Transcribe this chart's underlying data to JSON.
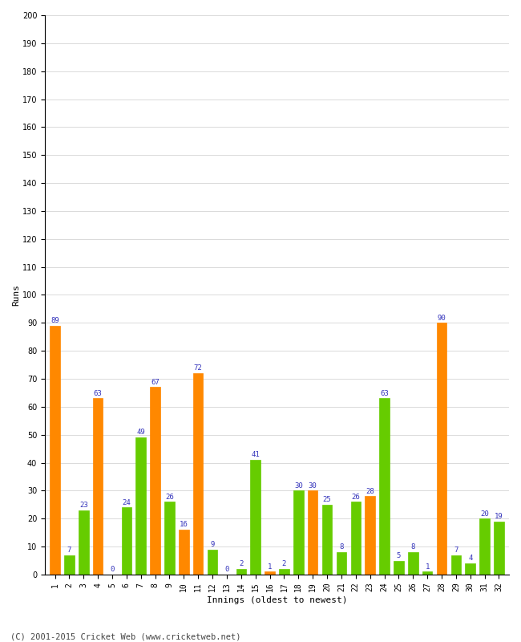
{
  "xlabel": "Innings (oldest to newest)",
  "ylabel": "Runs",
  "ylim": [
    0,
    200
  ],
  "yticks": [
    0,
    10,
    20,
    30,
    40,
    50,
    60,
    70,
    80,
    90,
    100,
    110,
    120,
    130,
    140,
    150,
    160,
    170,
    180,
    190,
    200
  ],
  "innings": [
    1,
    2,
    3,
    4,
    5,
    6,
    7,
    8,
    9,
    10,
    11,
    12,
    13,
    14,
    15,
    16,
    17,
    18,
    19,
    20,
    21,
    22,
    23,
    24,
    25,
    26,
    27,
    28,
    29,
    30,
    31,
    32
  ],
  "values": [
    89,
    7,
    23,
    63,
    0,
    24,
    49,
    67,
    26,
    16,
    72,
    9,
    0,
    2,
    41,
    1,
    2,
    30,
    30,
    25,
    8,
    26,
    28,
    63,
    5,
    8,
    1,
    90,
    7,
    4,
    20,
    19
  ],
  "colors": [
    "#ff8800",
    "#66cc00",
    "#66cc00",
    "#ff8800",
    "#ff8800",
    "#66cc00",
    "#66cc00",
    "#ff8800",
    "#66cc00",
    "#ff8800",
    "#ff8800",
    "#66cc00",
    "#66cc00",
    "#66cc00",
    "#66cc00",
    "#ff8800",
    "#66cc00",
    "#66cc00",
    "#ff8800",
    "#66cc00",
    "#66cc00",
    "#66cc00",
    "#ff8800",
    "#66cc00",
    "#66cc00",
    "#66cc00",
    "#66cc00",
    "#ff8800",
    "#66cc00",
    "#66cc00",
    "#66cc00",
    "#66cc00"
  ],
  "label_color": "#3333bb",
  "label_fontsize": 6.5,
  "axis_fontsize": 8,
  "tick_fontsize": 7,
  "ylabel_fontsize": 8,
  "background_color": "#ffffff",
  "footer": "(C) 2001-2015 Cricket Web (www.cricketweb.net)",
  "footer_fontsize": 7.5,
  "bar_width": 0.7,
  "grid_color": "#cccccc"
}
